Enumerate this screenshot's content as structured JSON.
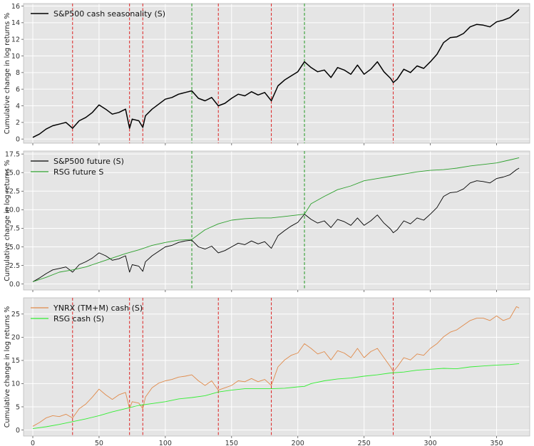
{
  "chart_data": [
    {
      "type": "line",
      "ylabel": "Cumulative change in log returns %",
      "xlim": [
        -7,
        375
      ],
      "ylim": [
        -0.5,
        16.3
      ],
      "yticks": [
        0,
        2,
        4,
        6,
        8,
        10,
        12,
        14,
        16
      ],
      "xticks": [
        0,
        50,
        100,
        150,
        200,
        250,
        300,
        350
      ],
      "show_xtick_labels": false,
      "grid": true,
      "legend_position": "upper-left",
      "vlines": [
        {
          "x": 30,
          "color": "#dd2222"
        },
        {
          "x": 73,
          "color": "#dd2222"
        },
        {
          "x": 83,
          "color": "#dd2222"
        },
        {
          "x": 120,
          "color": "#229922"
        },
        {
          "x": 140,
          "color": "#dd2222"
        },
        {
          "x": 180,
          "color": "#dd2222"
        },
        {
          "x": 205,
          "color": "#229922"
        },
        {
          "x": 272,
          "color": "#dd2222"
        }
      ],
      "series": [
        {
          "name": "S&P500 cash seasonality (S)",
          "color": "#000000",
          "width": 1.5,
          "x": [
            0,
            5,
            10,
            15,
            20,
            25,
            30,
            35,
            40,
            45,
            50,
            55,
            60,
            65,
            70,
            73,
            75,
            80,
            83,
            85,
            90,
            95,
            100,
            105,
            110,
            115,
            120,
            125,
            130,
            135,
            140,
            145,
            150,
            155,
            160,
            165,
            170,
            175,
            180,
            185,
            190,
            195,
            200,
            205,
            210,
            215,
            220,
            225,
            230,
            235,
            240,
            245,
            250,
            255,
            260,
            265,
            270,
            272,
            275,
            280,
            285,
            290,
            295,
            300,
            305,
            310,
            315,
            320,
            325,
            330,
            335,
            340,
            345,
            350,
            355,
            360,
            365,
            367
          ],
          "y": [
            0.2,
            0.6,
            1.2,
            1.6,
            1.8,
            2.0,
            1.3,
            2.2,
            2.6,
            3.2,
            4.1,
            3.6,
            3.0,
            3.2,
            3.6,
            1.3,
            2.4,
            2.2,
            1.4,
            2.8,
            3.6,
            4.2,
            4.8,
            5.0,
            5.4,
            5.6,
            5.8,
            4.9,
            4.6,
            5.0,
            4.0,
            4.3,
            4.9,
            5.4,
            5.2,
            5.7,
            5.3,
            5.6,
            4.6,
            6.4,
            7.1,
            7.6,
            8.1,
            9.3,
            8.6,
            8.1,
            8.3,
            7.4,
            8.6,
            8.3,
            7.8,
            8.9,
            7.8,
            8.4,
            9.3,
            8.1,
            7.3,
            6.8,
            7.2,
            8.4,
            8.0,
            8.8,
            8.5,
            9.3,
            10.2,
            11.6,
            12.2,
            12.3,
            12.7,
            13.5,
            13.8,
            13.7,
            13.5,
            14.1,
            14.3,
            14.6,
            15.3,
            15.6
          ]
        }
      ]
    },
    {
      "type": "line",
      "ylabel": "Cumulative change in log returns %",
      "xlim": [
        -7,
        375
      ],
      "ylim": [
        -0.8,
        17.9
      ],
      "yticks": [
        0.0,
        2.5,
        5.0,
        7.5,
        10.0,
        12.5,
        15.0,
        17.5
      ],
      "ytick_labels": [
        "0.0",
        "2.5",
        "5.0",
        "7.5",
        "10.0",
        "12.5",
        "15.0",
        "17.5"
      ],
      "xticks": [
        0,
        50,
        100,
        150,
        200,
        250,
        300,
        350
      ],
      "show_xtick_labels": false,
      "grid": true,
      "legend_position": "upper-left",
      "vlines": [
        {
          "x": 120,
          "color": "#229922"
        },
        {
          "x": 205,
          "color": "#229922"
        }
      ],
      "series": [
        {
          "name": "S&P500 future (S)",
          "color": "#000000",
          "width": 0.9,
          "x": [
            0,
            5,
            10,
            15,
            20,
            25,
            30,
            35,
            40,
            45,
            50,
            55,
            60,
            65,
            70,
            73,
            75,
            80,
            83,
            85,
            90,
            95,
            100,
            105,
            110,
            115,
            120,
            125,
            130,
            135,
            140,
            145,
            150,
            155,
            160,
            165,
            170,
            175,
            180,
            185,
            190,
            195,
            200,
            205,
            210,
            215,
            220,
            225,
            230,
            235,
            240,
            245,
            250,
            255,
            260,
            265,
            270,
            272,
            275,
            280,
            285,
            290,
            295,
            300,
            305,
            310,
            315,
            320,
            325,
            330,
            335,
            340,
            345,
            350,
            355,
            360,
            365,
            367
          ],
          "y": [
            0.3,
            0.8,
            1.4,
            1.9,
            2.1,
            2.3,
            1.6,
            2.6,
            3.0,
            3.5,
            4.2,
            3.8,
            3.2,
            3.4,
            3.8,
            1.6,
            2.6,
            2.4,
            1.7,
            3.0,
            3.8,
            4.4,
            5.0,
            5.2,
            5.6,
            5.8,
            5.9,
            5.0,
            4.7,
            5.1,
            4.2,
            4.5,
            5.0,
            5.5,
            5.3,
            5.8,
            5.4,
            5.7,
            4.8,
            6.5,
            7.2,
            7.8,
            8.3,
            9.4,
            8.7,
            8.2,
            8.5,
            7.6,
            8.7,
            8.4,
            7.9,
            8.9,
            7.9,
            8.5,
            9.3,
            8.2,
            7.4,
            6.9,
            7.3,
            8.5,
            8.1,
            8.9,
            8.6,
            9.4,
            10.3,
            11.8,
            12.3,
            12.4,
            12.8,
            13.6,
            13.9,
            13.8,
            13.6,
            14.2,
            14.4,
            14.7,
            15.4,
            15.6
          ]
        },
        {
          "name": "RSG future S",
          "color": "#2ca02c",
          "width": 0.9,
          "x": [
            0,
            10,
            20,
            30,
            40,
            50,
            60,
            70,
            80,
            90,
            100,
            110,
            120,
            130,
            140,
            150,
            160,
            170,
            180,
            190,
            200,
            205,
            210,
            220,
            230,
            240,
            250,
            260,
            270,
            280,
            290,
            300,
            310,
            320,
            330,
            340,
            350,
            360,
            367
          ],
          "y": [
            0.3,
            0.9,
            1.6,
            1.9,
            2.3,
            2.9,
            3.5,
            4.1,
            4.6,
            5.2,
            5.6,
            5.9,
            6.0,
            7.3,
            8.1,
            8.6,
            8.8,
            8.9,
            8.9,
            9.1,
            9.3,
            9.4,
            10.8,
            11.8,
            12.7,
            13.2,
            13.9,
            14.2,
            14.5,
            14.8,
            15.1,
            15.3,
            15.4,
            15.6,
            15.9,
            16.1,
            16.3,
            16.7,
            17.0
          ]
        }
      ]
    },
    {
      "type": "line",
      "ylabel": "Cumulative change in log returns %",
      "xlim": [
        -7,
        375
      ],
      "ylim": [
        -1.3,
        28.5
      ],
      "yticks": [
        0,
        5,
        10,
        15,
        20,
        25
      ],
      "xticks": [
        0,
        50,
        100,
        150,
        200,
        250,
        300,
        350
      ],
      "xtick_labels": [
        "0",
        "50",
        "100",
        "150",
        "200",
        "250",
        "300",
        "350"
      ],
      "show_xtick_labels": true,
      "grid": true,
      "legend_position": "upper-left",
      "vlines": [
        {
          "x": 30,
          "color": "#dd2222"
        },
        {
          "x": 73,
          "color": "#dd2222"
        },
        {
          "x": 83,
          "color": "#dd2222"
        },
        {
          "x": 140,
          "color": "#dd2222"
        },
        {
          "x": 180,
          "color": "#dd2222"
        },
        {
          "x": 272,
          "color": "#dd2222"
        }
      ],
      "series": [
        {
          "name": "YNRX (TM+M) cash (S)",
          "color": "#e08a4a",
          "width": 0.9,
          "x": [
            0,
            5,
            10,
            15,
            20,
            25,
            30,
            35,
            40,
            45,
            50,
            55,
            60,
            65,
            70,
            73,
            75,
            80,
            83,
            85,
            90,
            95,
            100,
            105,
            110,
            115,
            120,
            125,
            130,
            135,
            140,
            145,
            150,
            155,
            160,
            165,
            170,
            175,
            180,
            185,
            190,
            195,
            200,
            205,
            210,
            215,
            220,
            225,
            230,
            235,
            240,
            245,
            250,
            255,
            260,
            265,
            270,
            272,
            275,
            280,
            285,
            290,
            295,
            300,
            305,
            310,
            315,
            320,
            325,
            330,
            335,
            340,
            345,
            350,
            355,
            360,
            365,
            367
          ],
          "y": [
            0.8,
            1.6,
            2.6,
            3.1,
            2.9,
            3.4,
            2.6,
            4.6,
            5.6,
            7.1,
            8.8,
            7.6,
            6.6,
            7.6,
            8.1,
            4.6,
            6.1,
            5.8,
            4.6,
            7.1,
            9.1,
            10.1,
            10.6,
            10.9,
            11.4,
            11.6,
            11.9,
            10.6,
            9.6,
            10.6,
            8.6,
            9.1,
            9.6,
            10.6,
            10.4,
            11.1,
            10.4,
            10.9,
            9.6,
            13.6,
            15.1,
            16.1,
            16.6,
            18.6,
            17.6,
            16.4,
            16.9,
            15.1,
            17.1,
            16.6,
            15.6,
            17.6,
            15.6,
            16.9,
            17.6,
            15.6,
            13.6,
            12.6,
            13.6,
            15.6,
            15.1,
            16.4,
            16.1,
            17.6,
            18.6,
            20.1,
            21.1,
            21.6,
            22.6,
            23.6,
            24.1,
            24.1,
            23.6,
            24.6,
            23.6,
            24.1,
            26.6,
            26.3
          ]
        },
        {
          "name": "RSG cash (S)",
          "color": "#33ee33",
          "width": 0.9,
          "x": [
            0,
            10,
            20,
            30,
            40,
            50,
            60,
            70,
            80,
            90,
            100,
            110,
            120,
            130,
            140,
            150,
            160,
            170,
            180,
            190,
            200,
            205,
            210,
            220,
            230,
            240,
            250,
            260,
            270,
            280,
            290,
            300,
            310,
            320,
            330,
            340,
            350,
            360,
            367
          ],
          "y": [
            0.3,
            0.7,
            1.2,
            1.8,
            2.4,
            3.1,
            3.9,
            4.6,
            5.3,
            5.7,
            6.1,
            6.7,
            7.0,
            7.4,
            8.2,
            8.6,
            8.9,
            8.9,
            8.9,
            9.0,
            9.3,
            9.4,
            10.0,
            10.6,
            11.0,
            11.2,
            11.6,
            11.9,
            12.3,
            12.5,
            12.9,
            13.1,
            13.3,
            13.2,
            13.6,
            13.8,
            14.0,
            14.1,
            14.3
          ]
        }
      ]
    }
  ]
}
